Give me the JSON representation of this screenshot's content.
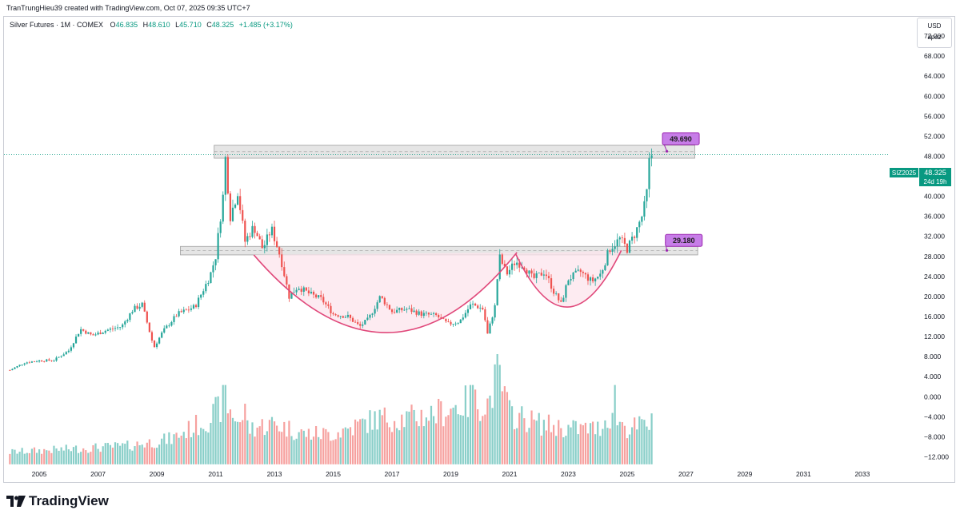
{
  "header": {
    "caption": "TranTrungHieu39 created with TradingView.com, Oct 07, 2025 09:35 UTC+7"
  },
  "legend": {
    "symbol": "Silver Futures · 1M · COMEX",
    "open_label": "O",
    "open": "46.835",
    "high_label": "H",
    "high": "48.610",
    "low_label": "L",
    "low": "45.710",
    "close_label": "C",
    "close": "48.325",
    "change": "+1.485 (+3.17%)"
  },
  "unit_box": {
    "currency": "USD",
    "mode": "apoz"
  },
  "price_tag": {
    "symbol": "SIZ2025",
    "price": "48.325",
    "countdown": "24d 19h"
  },
  "logo": {
    "text": "TradingView"
  },
  "colors": {
    "up": "#26a69a",
    "down": "#ef5350",
    "cup": "#e0487a",
    "cup_fill": "#fce4ec",
    "callout": "#c77de8",
    "callout_border": "#9c27b0",
    "zone_fill": "#e5e5e5",
    "zone_border": "#9e9e9e"
  },
  "chart_data": {
    "type": "candlestick",
    "title": "Silver Futures · 1M · COMEX",
    "y_tick_labels": [
      "72.000",
      "68.000",
      "64.000",
      "60.000",
      "56.000",
      "52.000",
      "48.000",
      "44.000",
      "40.000",
      "36.000",
      "32.000",
      "28.000",
      "24.000",
      "20.000",
      "16.000",
      "12.000",
      "8.000",
      "4.000",
      "0.000",
      "−4.000",
      "−8.000",
      "−12.000"
    ],
    "y_ticks": [
      72,
      68,
      64,
      60,
      56,
      52,
      48,
      44,
      40,
      36,
      32,
      28,
      24,
      20,
      16,
      12,
      8,
      4,
      0,
      -4,
      -8,
      -12
    ],
    "ylim": [
      -14,
      76
    ],
    "x_tick_labels": [
      "2005",
      "2007",
      "2009",
      "2011",
      "2013",
      "2015",
      "2017",
      "2019",
      "2021",
      "2023",
      "2025",
      "2027",
      "2029",
      "2031",
      "2033"
    ],
    "x_ticks": [
      2005,
      2007,
      2009,
      2011,
      2013,
      2015,
      2017,
      2019,
      2021,
      2023,
      2025,
      2027,
      2029,
      2031,
      2033
    ],
    "xlim": [
      2003.8,
      2034.2
    ],
    "last_price": 48.325,
    "zones": [
      {
        "name": "resistance-upper",
        "from": 2010.95,
        "to": 2027.3,
        "low": 47.6,
        "high": 50.2
      },
      {
        "name": "resistance-lower",
        "from": 2009.8,
        "to": 2027.4,
        "low": 28.3,
        "high": 30.0
      }
    ],
    "annotations": [
      {
        "label": "49.690",
        "x": 2026.2,
        "y": 51.5,
        "anchor_x": 2026.35,
        "anchor_y": 49.0
      },
      {
        "label": "29.180",
        "x": 2026.3,
        "y": 31.2,
        "anchor_x": 2026.35,
        "anchor_y": 29.2
      }
    ],
    "cups": [
      {
        "name": "big-cup",
        "start": [
          2012.3,
          28.3
        ],
        "bottom": [
          2016.9,
          12.8
        ],
        "end": [
          2021.25,
          28.8
        ]
      },
      {
        "name": "small-cup",
        "start": [
          2021.2,
          28.6
        ],
        "bottom": [
          2022.95,
          17.9
        ],
        "end": [
          2024.8,
          29.2
        ]
      }
    ],
    "price_anchors": [
      [
        2004.0,
        5.3
      ],
      [
        2004.5,
        6.8
      ],
      [
        2005.0,
        7.2
      ],
      [
        2005.5,
        7.3
      ],
      [
        2006.0,
        9.2
      ],
      [
        2006.4,
        13.5
      ],
      [
        2006.8,
        12.2
      ],
      [
        2007.3,
        13.3
      ],
      [
        2007.8,
        14.0
      ],
      [
        2008.2,
        17.5
      ],
      [
        2008.5,
        18.4
      ],
      [
        2008.9,
        9.8
      ],
      [
        2009.2,
        13.0
      ],
      [
        2009.7,
        16.5
      ],
      [
        2010.3,
        18.0
      ],
      [
        2010.8,
        24.0
      ],
      [
        2011.0,
        28.0
      ],
      [
        2011.25,
        40.0
      ],
      [
        2011.32,
        48.5
      ],
      [
        2011.5,
        36.0
      ],
      [
        2011.75,
        41.0
      ],
      [
        2012.0,
        31.0
      ],
      [
        2012.3,
        34.0
      ],
      [
        2012.6,
        29.5
      ],
      [
        2012.9,
        33.5
      ],
      [
        2013.2,
        28.0
      ],
      [
        2013.5,
        20.0
      ],
      [
        2013.8,
        22.0
      ],
      [
        2014.2,
        20.5
      ],
      [
        2014.6,
        19.5
      ],
      [
        2015.0,
        16.5
      ],
      [
        2015.5,
        16.0
      ],
      [
        2015.9,
        14.0
      ],
      [
        2016.2,
        15.5
      ],
      [
        2016.6,
        20.0
      ],
      [
        2017.0,
        17.0
      ],
      [
        2017.5,
        17.5
      ],
      [
        2018.0,
        16.5
      ],
      [
        2018.5,
        16.2
      ],
      [
        2018.9,
        14.5
      ],
      [
        2019.3,
        15.0
      ],
      [
        2019.7,
        18.5
      ],
      [
        2020.1,
        17.5
      ],
      [
        2020.25,
        12.5
      ],
      [
        2020.5,
        18.0
      ],
      [
        2020.65,
        28.0
      ],
      [
        2020.9,
        24.5
      ],
      [
        2021.2,
        27.0
      ],
      [
        2021.5,
        26.0
      ],
      [
        2021.8,
        23.5
      ],
      [
        2022.2,
        25.0
      ],
      [
        2022.5,
        21.0
      ],
      [
        2022.75,
        18.5
      ],
      [
        2023.0,
        23.5
      ],
      [
        2023.4,
        25.0
      ],
      [
        2023.8,
        23.0
      ],
      [
        2024.1,
        24.5
      ],
      [
        2024.4,
        29.5
      ],
      [
        2024.75,
        31.5
      ],
      [
        2025.0,
        29.5
      ],
      [
        2025.3,
        33.0
      ],
      [
        2025.5,
        36.0
      ],
      [
        2025.65,
        39.5
      ],
      [
        2025.75,
        46.8
      ],
      [
        2025.8,
        48.3
      ]
    ],
    "volume_scale": {
      "base_value": -13.5,
      "max_value": 8.5
    },
    "volume_anchors": [
      [
        2004.0,
        0.12
      ],
      [
        2006.0,
        0.15
      ],
      [
        2008.0,
        0.18
      ],
      [
        2009.5,
        0.25
      ],
      [
        2010.8,
        0.45
      ],
      [
        2011.3,
        0.6
      ],
      [
        2012.0,
        0.35
      ],
      [
        2013.0,
        0.4
      ],
      [
        2014.0,
        0.3
      ],
      [
        2015.0,
        0.3
      ],
      [
        2016.5,
        0.45
      ],
      [
        2017.5,
        0.45
      ],
      [
        2018.5,
        0.5
      ],
      [
        2019.5,
        0.6
      ],
      [
        2020.3,
        0.6
      ],
      [
        2020.6,
        0.9
      ],
      [
        2021.0,
        0.5
      ],
      [
        2022.0,
        0.4
      ],
      [
        2023.0,
        0.35
      ],
      [
        2024.0,
        0.35
      ],
      [
        2024.5,
        0.5
      ],
      [
        2025.0,
        0.35
      ],
      [
        2025.8,
        0.4
      ]
    ]
  }
}
